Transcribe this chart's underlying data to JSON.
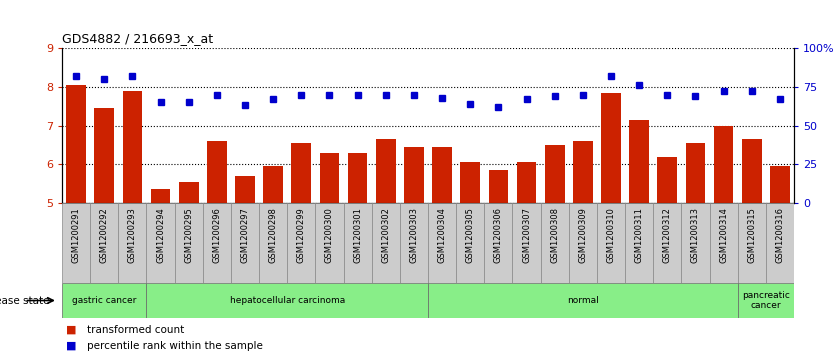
{
  "title": "GDS4882 / 216693_x_at",
  "samples": [
    "GSM1200291",
    "GSM1200292",
    "GSM1200293",
    "GSM1200294",
    "GSM1200295",
    "GSM1200296",
    "GSM1200297",
    "GSM1200298",
    "GSM1200299",
    "GSM1200300",
    "GSM1200301",
    "GSM1200302",
    "GSM1200303",
    "GSM1200304",
    "GSM1200305",
    "GSM1200306",
    "GSM1200307",
    "GSM1200308",
    "GSM1200309",
    "GSM1200310",
    "GSM1200311",
    "GSM1200312",
    "GSM1200313",
    "GSM1200314",
    "GSM1200315",
    "GSM1200316"
  ],
  "bar_values": [
    8.05,
    7.45,
    7.9,
    5.35,
    5.55,
    6.6,
    5.7,
    5.95,
    6.55,
    6.3,
    6.3,
    6.65,
    6.45,
    6.45,
    6.05,
    5.85,
    6.05,
    6.5,
    6.6,
    7.85,
    7.15,
    6.2,
    6.55,
    7.0,
    6.65,
    5.95
  ],
  "percentile_values": [
    82,
    80,
    82,
    65,
    65,
    70,
    63,
    67,
    70,
    70,
    70,
    70,
    70,
    68,
    64,
    62,
    67,
    69,
    70,
    82,
    76,
    70,
    69,
    72,
    72,
    67
  ],
  "bar_color": "#cc2200",
  "percentile_color": "#0000cc",
  "ylim_left": [
    5,
    9
  ],
  "ylim_right": [
    0,
    100
  ],
  "yticks_left": [
    5,
    6,
    7,
    8,
    9
  ],
  "yticks_right": [
    0,
    25,
    50,
    75,
    100
  ],
  "ytick_labels_right": [
    "0",
    "25",
    "50",
    "75",
    "100%"
  ],
  "disease_groups": [
    {
      "label": "gastric cancer",
      "start": 0,
      "end": 3
    },
    {
      "label": "hepatocellular carcinoma",
      "start": 3,
      "end": 13
    },
    {
      "label": "normal",
      "start": 13,
      "end": 24
    },
    {
      "label": "pancreatic\ncancer",
      "start": 24,
      "end": 26
    }
  ],
  "disease_state_label": "disease state",
  "legend_bar_label": "transformed count",
  "legend_pct_label": "percentile rank within the sample",
  "background_color": "#ffffff",
  "tick_bg_color": "#cccccc",
  "group_bg_color": "#88ee88",
  "grid_color": "#000000"
}
